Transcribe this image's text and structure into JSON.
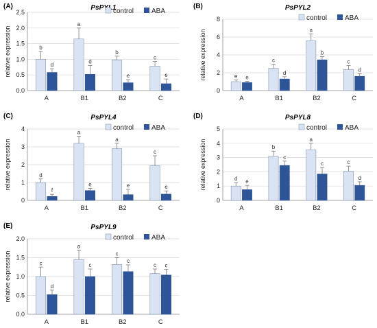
{
  "colors": {
    "control": "#dae3f3",
    "control_stroke": "#8497b0",
    "aba": "#2e5597",
    "axis": "#888888",
    "grid": "#d9d9d9",
    "error": "#777777"
  },
  "chart_data": [
    {
      "type": "bar",
      "panel_label": "(A)",
      "title": "PsPYL1",
      "ylabel": "relative expression",
      "categories": [
        "A",
        "B1",
        "B2",
        "C"
      ],
      "ylim": [
        0,
        2.5
      ],
      "yticks": [
        "0.0",
        "0.5",
        "1.0",
        "1.5",
        "2.0",
        "2.5"
      ],
      "grid": true,
      "legend": "top-right",
      "series": [
        {
          "name": "control",
          "values": [
            1.0,
            1.65,
            0.98,
            0.78
          ],
          "errors": [
            0.25,
            0.35,
            0.12,
            0.15
          ],
          "letters": [
            "b",
            "a",
            "b",
            "c"
          ]
        },
        {
          "name": "ABA",
          "values": [
            0.58,
            0.52,
            0.25,
            0.22
          ],
          "errors": [
            0.12,
            0.28,
            0.1,
            0.15
          ],
          "letters": [
            "d",
            "d",
            "e",
            "e"
          ]
        }
      ]
    },
    {
      "type": "bar",
      "panel_label": "(B)",
      "title": "PsPYL2",
      "ylabel": "relative expression",
      "categories": [
        "A",
        "B1",
        "B2",
        "C"
      ],
      "ylim": [
        0,
        8
      ],
      "yticks": [
        "0",
        "2",
        "4",
        "6",
        "8"
      ],
      "grid": true,
      "legend": "top-right",
      "series": [
        {
          "name": "control",
          "values": [
            1.0,
            2.5,
            5.6,
            2.35
          ],
          "errors": [
            0.2,
            0.45,
            0.75,
            0.45
          ],
          "letters": [
            "e",
            "c",
            "a",
            "c"
          ]
        },
        {
          "name": "ABA",
          "values": [
            0.9,
            1.3,
            3.45,
            1.6
          ],
          "errors": [
            0.15,
            0.25,
            0.35,
            0.3
          ],
          "letters": [
            "e",
            "d",
            "b",
            "d"
          ]
        }
      ]
    },
    {
      "type": "bar",
      "panel_label": "(C)",
      "title": "PsPYL4",
      "ylabel": "relative expression",
      "categories": [
        "A",
        "B1",
        "B2",
        "C"
      ],
      "ylim": [
        0,
        4
      ],
      "yticks": [
        "0",
        "1",
        "2",
        "3",
        "4"
      ],
      "grid": true,
      "legend": "top-right",
      "series": [
        {
          "name": "control",
          "values": [
            1.0,
            3.2,
            2.9,
            1.95
          ],
          "errors": [
            0.2,
            0.4,
            0.3,
            0.55
          ],
          "letters": [
            "d",
            "a",
            "a",
            "c"
          ]
        },
        {
          "name": "ABA",
          "values": [
            0.22,
            0.55,
            0.32,
            0.35
          ],
          "errors": [
            0.12,
            0.12,
            0.3,
            0.18
          ],
          "letters": [
            "f",
            "e",
            "e",
            "e"
          ]
        }
      ]
    },
    {
      "type": "bar",
      "panel_label": "(D)",
      "title": "PsPYL8",
      "ylabel": "relative expression",
      "categories": [
        "A",
        "B1",
        "B2",
        "C"
      ],
      "ylim": [
        0,
        5
      ],
      "yticks": [
        "0",
        "1",
        "2",
        "3",
        "4",
        "5"
      ],
      "grid": true,
      "legend": "top-right",
      "series": [
        {
          "name": "control",
          "values": [
            1.0,
            3.1,
            3.55,
            2.05
          ],
          "errors": [
            0.25,
            0.35,
            0.45,
            0.35
          ],
          "letters": [
            "d",
            "b",
            "a",
            "c"
          ]
        },
        {
          "name": "ABA",
          "values": [
            0.75,
            2.45,
            1.85,
            1.05
          ],
          "errors": [
            0.3,
            0.3,
            0.45,
            0.25
          ],
          "letters": [
            "e",
            "c",
            "c",
            "d"
          ]
        }
      ]
    },
    {
      "type": "bar",
      "panel_label": "(E)",
      "title": "PsPYL9",
      "ylabel": "relative expression",
      "categories": [
        "A",
        "B1",
        "B2",
        "C"
      ],
      "ylim": [
        0,
        2.0
      ],
      "yticks": [
        "0.0",
        "0.5",
        "1.0",
        "1.5",
        "2.0"
      ],
      "grid": true,
      "legend": "top-right",
      "series": [
        {
          "name": "control",
          "values": [
            1.0,
            1.45,
            1.32,
            1.08
          ],
          "errors": [
            0.25,
            0.25,
            0.18,
            0.12
          ],
          "letters": [
            "c",
            "a",
            "c",
            "c"
          ]
        },
        {
          "name": "ABA",
          "values": [
            0.52,
            1.0,
            1.13,
            1.04
          ],
          "errors": [
            0.12,
            0.2,
            0.18,
            0.15
          ],
          "letters": [
            "d",
            "c",
            "c",
            "c"
          ]
        }
      ]
    }
  ]
}
